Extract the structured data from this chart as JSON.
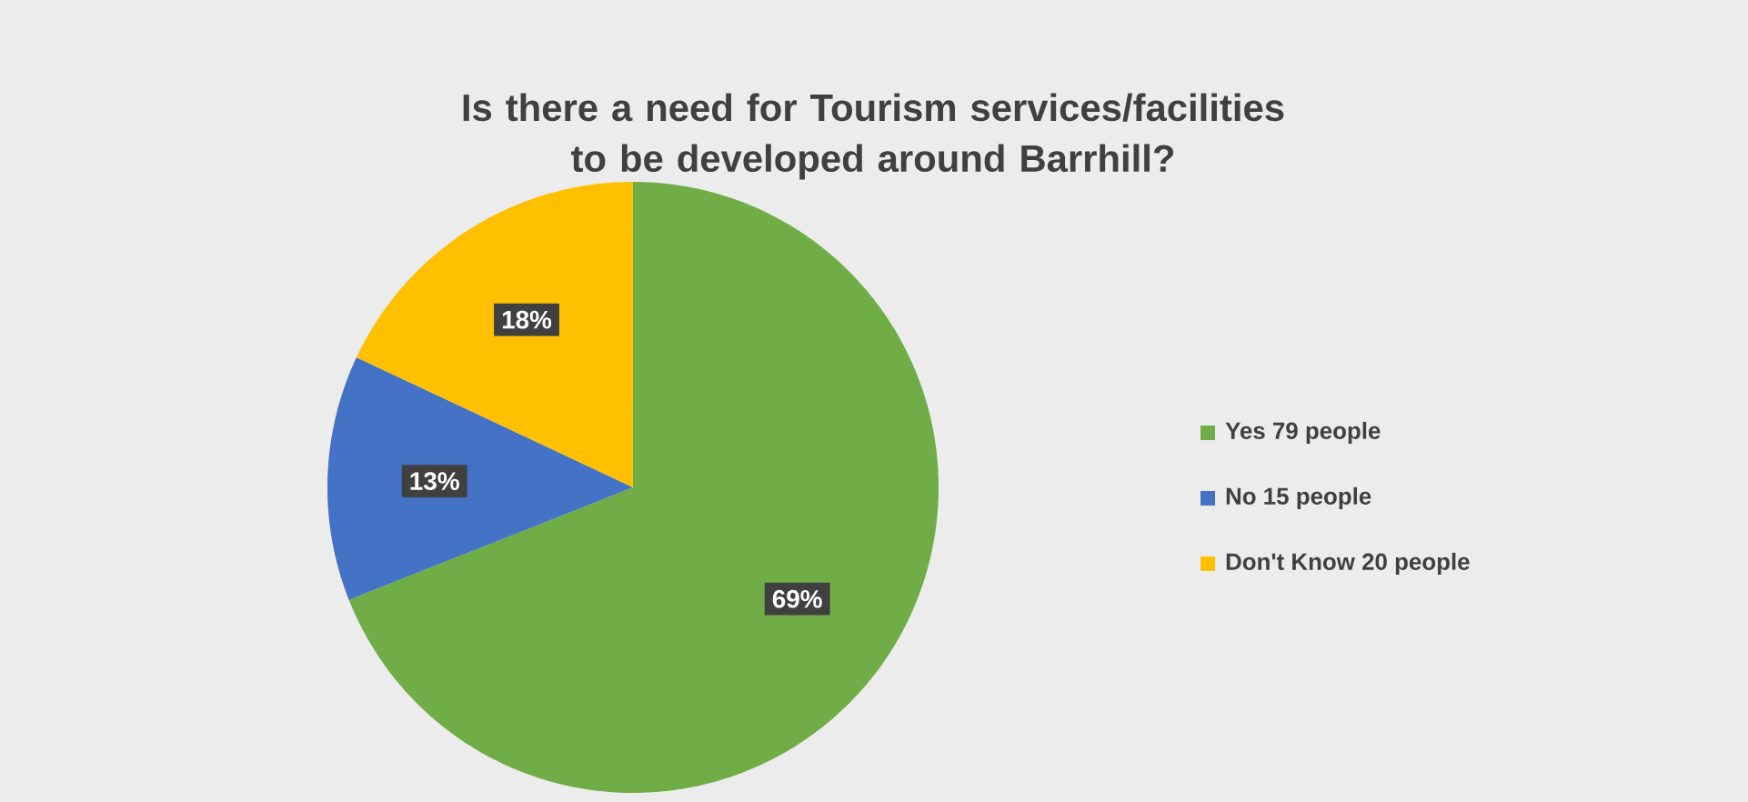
{
  "chart_data": {
    "type": "pie",
    "title": "Is there a need for Tourism services/facilities to be developed around Barrhill?",
    "categories": [
      "Yes 79 people",
      "No 15 people",
      "Don't Know 20 people"
    ],
    "values": [
      69,
      13,
      18
    ],
    "colors": [
      "#70ad47",
      "#4472c4",
      "#ffc000"
    ],
    "value_labels": [
      "69%",
      "13%",
      "18%"
    ],
    "legend": "right"
  }
}
